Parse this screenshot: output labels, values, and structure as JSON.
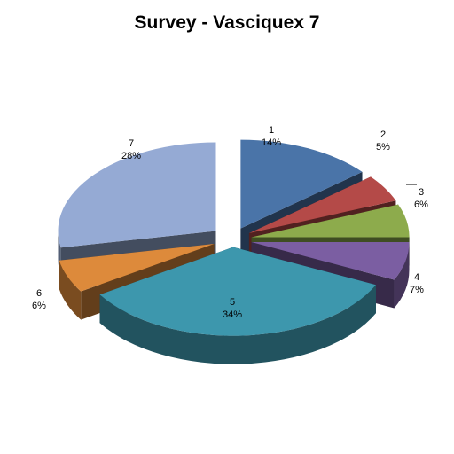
{
  "chart_data": {
    "type": "pie",
    "style": "3d-exploded",
    "title": "Survey - Vasciquex 7",
    "categories": [
      "1",
      "2",
      "3",
      "4",
      "5",
      "6",
      "7"
    ],
    "values": [
      14,
      5,
      6,
      7,
      34,
      6,
      28
    ],
    "value_labels": [
      "14%",
      "5%",
      "6%",
      "7%",
      "34%",
      "6%",
      "28%"
    ],
    "colors": [
      "#4a74a8",
      "#b44a48",
      "#8dab4c",
      "#7b5ea2",
      "#3d97ad",
      "#dd8a3b",
      "#95aad4"
    ],
    "legend": "none",
    "data_labels": "category-and-percent"
  }
}
